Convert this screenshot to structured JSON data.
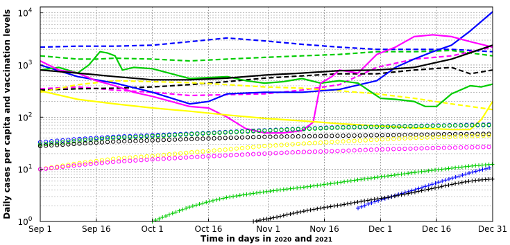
{
  "chart_data": {
    "type": "line",
    "xlabel": {
      "prefix": "Time in days in ",
      "y1": "2020",
      "mid": " and ",
      "y2": "2021"
    },
    "ylabel": "Daily cases per capita and vaccination levels",
    "yscale": "log",
    "ylim": [
      1,
      13000
    ],
    "xlim": [
      0,
      121
    ],
    "grid": true,
    "x_ticks": [
      {
        "day": 0,
        "label": "Sep 1"
      },
      {
        "day": 15,
        "label": "Sep 16"
      },
      {
        "day": 30,
        "label": "Oct 1"
      },
      {
        "day": 45,
        "label": "Oct 16"
      },
      {
        "day": 61,
        "label": "Nov 1"
      },
      {
        "day": 76,
        "label": "Nov 16"
      },
      {
        "day": 91,
        "label": "Dec 1"
      },
      {
        "day": 106,
        "label": "Dec 16"
      },
      {
        "day": 121,
        "label": "Dec 31"
      }
    ],
    "y_ticks": [
      {
        "value": 1,
        "base": "10",
        "exp": "0"
      },
      {
        "value": 10,
        "base": "10",
        "exp": "1"
      },
      {
        "value": 100,
        "base": "10",
        "exp": "2"
      },
      {
        "value": 1000,
        "base": "10",
        "exp": "3"
      },
      {
        "value": 10000,
        "base": "10",
        "exp": "4"
      }
    ],
    "series": [
      {
        "color": "#0000ff",
        "style": "dashed",
        "x": [
          0,
          10,
          20,
          30,
          40,
          50,
          60,
          70,
          80,
          90,
          100,
          110,
          121
        ],
        "y": [
          2200,
          2300,
          2300,
          2400,
          2800,
          3300,
          2900,
          2500,
          2200,
          2000,
          2000,
          2000,
          1800
        ]
      },
      {
        "color": "#00cc00",
        "style": "dashed",
        "x": [
          0,
          10,
          15,
          20,
          30,
          40,
          50,
          60,
          70,
          80,
          90,
          100,
          110,
          121
        ],
        "y": [
          1500,
          1300,
          1300,
          1350,
          1300,
          1200,
          1300,
          1400,
          1500,
          1600,
          1800,
          1800,
          1900,
          1500
        ]
      },
      {
        "color": "#ff00ff",
        "style": "dashed",
        "x": [
          0,
          10,
          20,
          30,
          40,
          50,
          60,
          70,
          80,
          90,
          100,
          110,
          121
        ],
        "y": [
          350,
          380,
          330,
          300,
          260,
          270,
          280,
          330,
          420,
          900,
          1300,
          1500,
          2200
        ]
      },
      {
        "color": "#000000",
        "style": "dashed",
        "x": [
          0,
          10,
          20,
          30,
          40,
          50,
          60,
          70,
          80,
          90,
          100,
          110,
          115,
          121
        ],
        "y": [
          330,
          350,
          360,
          380,
          420,
          480,
          560,
          620,
          680,
          680,
          800,
          900,
          680,
          800
        ]
      },
      {
        "color": "#ffff00",
        "style": "dashed",
        "x": [
          0,
          10,
          20,
          30,
          40,
          50,
          60,
          70,
          80,
          90,
          100,
          110,
          121
        ],
        "y": [
          300,
          420,
          500,
          480,
          460,
          420,
          380,
          360,
          320,
          280,
          230,
          180,
          140
        ]
      },
      {
        "color": "#0000ff",
        "style": "solid",
        "x": [
          0,
          10,
          20,
          30,
          40,
          45,
          50,
          60,
          70,
          80,
          90,
          95,
          100,
          105,
          110,
          115,
          121
        ],
        "y": [
          1000,
          600,
          450,
          300,
          180,
          200,
          280,
          300,
          300,
          340,
          500,
          900,
          1300,
          1800,
          2400,
          4500,
          10500
        ]
      },
      {
        "color": "#00cc00",
        "style": "solid",
        "x": [
          0,
          5,
          10,
          13,
          16,
          18,
          20,
          22,
          25,
          30,
          40,
          50,
          55,
          60,
          65,
          70,
          75,
          80,
          85,
          88,
          91,
          95,
          100,
          103,
          106,
          110,
          115,
          118,
          121
        ],
        "y": [
          800,
          900,
          700,
          1000,
          1800,
          1700,
          1500,
          800,
          900,
          850,
          550,
          600,
          500,
          450,
          480,
          550,
          450,
          500,
          450,
          320,
          230,
          220,
          200,
          160,
          160,
          280,
          400,
          380,
          430
        ]
      },
      {
        "color": "#ff00ff",
        "style": "solid",
        "x": [
          0,
          5,
          10,
          15,
          20,
          25,
          30,
          35,
          40,
          45,
          50,
          55,
          60,
          65,
          70,
          73,
          75,
          78,
          80,
          85,
          90,
          95,
          100,
          105,
          110,
          115,
          121
        ],
        "y": [
          1200,
          800,
          700,
          500,
          400,
          300,
          250,
          200,
          160,
          150,
          100,
          60,
          50,
          50,
          55,
          80,
          450,
          600,
          800,
          700,
          1600,
          2200,
          3500,
          3800,
          3500,
          2800,
          2200
        ]
      },
      {
        "color": "#000000",
        "style": "solid",
        "x": [
          0,
          10,
          20,
          30,
          40,
          50,
          60,
          70,
          80,
          90,
          100,
          110,
          121
        ],
        "y": [
          800,
          700,
          600,
          520,
          520,
          560,
          640,
          700,
          780,
          800,
          900,
          1300,
          2400
        ]
      },
      {
        "color": "#ffff00",
        "style": "solid",
        "x": [
          0,
          10,
          20,
          30,
          40,
          50,
          60,
          70,
          80,
          90,
          100,
          110,
          115,
          118,
          121
        ],
        "y": [
          320,
          220,
          180,
          150,
          130,
          110,
          95,
          85,
          75,
          68,
          62,
          58,
          58,
          90,
          200
        ]
      },
      {
        "color": "#0000ff",
        "style": "circles",
        "x": [
          0,
          10,
          20,
          30,
          40,
          50,
          60,
          70,
          80,
          90,
          100,
          110,
          121
        ],
        "y": [
          33,
          38,
          42,
          45,
          48,
          52,
          56,
          60,
          64,
          66,
          68,
          70,
          72
        ]
      },
      {
        "color": "#00cc00",
        "style": "circles",
        "x": [
          0,
          10,
          20,
          30,
          40,
          50,
          60,
          70,
          80,
          90,
          100,
          110,
          121
        ],
        "y": [
          30,
          35,
          40,
          43,
          47,
          51,
          55,
          59,
          63,
          65,
          67,
          69,
          70
        ]
      },
      {
        "color": "#000000",
        "style": "circles",
        "x": [
          0,
          10,
          20,
          30,
          40,
          50,
          60,
          70,
          80,
          90,
          100,
          110,
          121
        ],
        "y": [
          28,
          31,
          34,
          36,
          38,
          40,
          42,
          43,
          44,
          45,
          46,
          47,
          48
        ]
      },
      {
        "color": "#ffff00",
        "style": "circles",
        "x": [
          0,
          10,
          20,
          30,
          40,
          50,
          60,
          70,
          80,
          90,
          100,
          110,
          121
        ],
        "y": [
          10,
          13,
          16,
          18,
          21,
          24,
          28,
          31,
          34,
          37,
          40,
          42,
          45
        ]
      },
      {
        "color": "#ff00ff",
        "style": "circles",
        "x": [
          0,
          10,
          20,
          30,
          40,
          50,
          60,
          70,
          80,
          90,
          100,
          110,
          121
        ],
        "y": [
          10,
          12,
          14,
          15.5,
          17,
          18.5,
          20,
          21.5,
          22.5,
          24,
          25,
          26,
          27
        ]
      },
      {
        "color": "#00cc00",
        "style": "plus",
        "x": [
          30,
          35,
          40,
          45,
          50,
          55,
          60,
          65,
          70,
          75,
          80,
          85,
          90,
          95,
          100,
          105,
          110,
          115,
          121
        ],
        "y": [
          1,
          1.4,
          1.9,
          2.4,
          2.9,
          3.3,
          3.7,
          4.1,
          4.5,
          5,
          5.6,
          6.3,
          7,
          7.8,
          8.7,
          9.6,
          10.5,
          11.5,
          12.5
        ]
      },
      {
        "color": "#0000ff",
        "style": "plus",
        "x": [
          85,
          88,
          91,
          94,
          97,
          100,
          103,
          106,
          109,
          112,
          115,
          118,
          121
        ],
        "y": [
          1.8,
          2.2,
          2.6,
          3,
          3.5,
          4,
          4.7,
          5.5,
          6.4,
          7.4,
          8.6,
          9.8,
          11
        ]
      },
      {
        "color": "#000000",
        "style": "plus",
        "x": [
          57,
          60,
          63,
          66,
          69,
          72,
          75,
          78,
          81,
          84,
          87,
          90,
          93,
          96,
          99,
          102,
          105,
          108,
          111,
          114,
          117,
          121
        ],
        "y": [
          1,
          1.1,
          1.2,
          1.35,
          1.5,
          1.65,
          1.8,
          1.95,
          2.1,
          2.3,
          2.5,
          2.7,
          2.9,
          3.2,
          3.5,
          3.9,
          4.3,
          4.8,
          5.3,
          5.8,
          6.2,
          6.5
        ]
      }
    ]
  }
}
